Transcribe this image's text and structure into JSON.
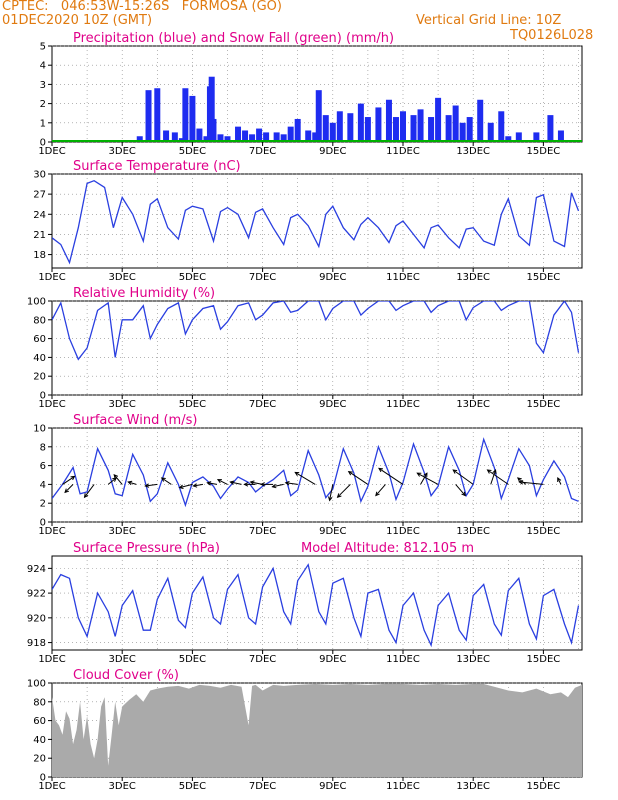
{
  "header": {
    "line1": "CPTEC:   046:53W-15:26S   FORMOSA (GO)",
    "line2": "01DEC2020 10Z (GMT)",
    "right1": "Vertical Grid Line: 10Z",
    "right2": "TQ0126L028"
  },
  "colors": {
    "header": "#e07a10",
    "title": "#e0008a",
    "precip": "#1e2cf0",
    "snow": "#00b000",
    "line": "#2a3fe0",
    "cloud": "#aaaaaa"
  },
  "x_axis": {
    "labels": [
      "1DEC",
      "3DEC",
      "5DEC",
      "7DEC",
      "9DEC",
      "11DEC",
      "13DEC",
      "15DEC"
    ],
    "label_days": [
      1,
      3,
      5,
      7,
      9,
      11,
      13,
      15
    ],
    "start_day": 1,
    "end_day": 16.1
  },
  "chart_data": [
    {
      "type": "bar",
      "title": "Precipitation (blue) and Snow Fall (green) (mm/h)",
      "ylim": [
        0,
        5
      ],
      "yticks": [
        0,
        1,
        2,
        3,
        4,
        5
      ],
      "series": [
        {
          "name": "Precipitation",
          "x": [
            3.5,
            3.75,
            4.0,
            4.25,
            4.5,
            4.7,
            4.8,
            5.0,
            5.2,
            5.4,
            5.5,
            5.55,
            5.6,
            5.8,
            6.0,
            6.3,
            6.5,
            6.7,
            6.9,
            7.1,
            7.4,
            7.6,
            7.8,
            8.0,
            8.3,
            8.5,
            8.6,
            8.8,
            9.0,
            9.2,
            9.5,
            9.8,
            10.0,
            10.3,
            10.6,
            10.8,
            11.0,
            11.3,
            11.5,
            11.8,
            12.0,
            12.3,
            12.5,
            12.7,
            12.9,
            13.2,
            13.5,
            13.8,
            14.0,
            14.3,
            14.8,
            15.2,
            15.5
          ],
          "values": [
            0.3,
            2.7,
            2.8,
            0.6,
            0.5,
            0.2,
            2.8,
            2.4,
            0.7,
            0.3,
            2.9,
            3.4,
            1.2,
            0.4,
            0.3,
            0.8,
            0.6,
            0.4,
            0.7,
            0.5,
            0.5,
            0.4,
            0.8,
            1.2,
            0.6,
            0.5,
            2.7,
            1.4,
            1.0,
            1.6,
            1.5,
            2.0,
            1.3,
            1.8,
            2.2,
            1.3,
            1.6,
            1.4,
            1.7,
            1.3,
            2.3,
            1.4,
            1.9,
            1.0,
            1.3,
            2.2,
            1.0,
            1.6,
            0.3,
            0.5,
            0.5,
            1.4,
            0.6
          ]
        },
        {
          "name": "Snow Fall",
          "x": [
            1,
            16
          ],
          "values": [
            0,
            0
          ]
        }
      ]
    },
    {
      "type": "line",
      "title": "Surface Temperature (nC)",
      "ylim": [
        16,
        30
      ],
      "yticks": [
        18,
        21,
        24,
        27,
        30
      ],
      "x": [
        1,
        1.25,
        1.5,
        1.75,
        2.0,
        2.2,
        2.5,
        2.75,
        3.0,
        3.3,
        3.6,
        3.8,
        4.0,
        4.3,
        4.6,
        4.8,
        5.0,
        5.3,
        5.6,
        5.8,
        6.0,
        6.3,
        6.6,
        6.8,
        7.0,
        7.3,
        7.6,
        7.8,
        8.0,
        8.3,
        8.6,
        8.8,
        9.0,
        9.3,
        9.6,
        9.8,
        10.0,
        10.3,
        10.6,
        10.8,
        11.0,
        11.3,
        11.6,
        11.8,
        12.0,
        12.3,
        12.6,
        12.8,
        13.0,
        13.3,
        13.6,
        13.8,
        14.0,
        14.3,
        14.6,
        14.8,
        15.0,
        15.3,
        15.6,
        15.8,
        16.0
      ],
      "values": [
        20.5,
        19.5,
        16.8,
        22.0,
        28.6,
        29.0,
        28.0,
        22.0,
        26.5,
        24.0,
        20.0,
        25.5,
        26.3,
        22.0,
        20.3,
        24.6,
        25.2,
        24.8,
        20.0,
        24.4,
        25.0,
        24.0,
        20.5,
        24.3,
        24.8,
        22.0,
        19.5,
        23.5,
        24.0,
        22.3,
        19.2,
        24.0,
        25.2,
        22.0,
        20.2,
        22.5,
        23.5,
        22.0,
        19.8,
        22.3,
        23.0,
        21.0,
        19.0,
        22.0,
        22.4,
        20.5,
        19.0,
        21.8,
        22.0,
        20.0,
        19.4,
        24.0,
        26.3,
        20.8,
        19.4,
        26.5,
        26.9,
        20.0,
        19.2,
        27.2,
        24.5
      ]
    },
    {
      "type": "line",
      "title": "Relative Humidity (%)",
      "ylim": [
        0,
        100
      ],
      "yticks": [
        0,
        20,
        40,
        60,
        80,
        100
      ],
      "x": [
        1,
        1.25,
        1.5,
        1.75,
        2.0,
        2.3,
        2.6,
        2.8,
        3.0,
        3.3,
        3.6,
        3.8,
        4.0,
        4.3,
        4.6,
        4.8,
        5.0,
        5.3,
        5.6,
        5.8,
        6.0,
        6.3,
        6.6,
        6.8,
        7.0,
        7.3,
        7.6,
        7.8,
        8.0,
        8.3,
        8.6,
        8.8,
        9.0,
        9.3,
        9.6,
        9.8,
        10.0,
        10.3,
        10.6,
        10.8,
        11.0,
        11.3,
        11.6,
        11.8,
        12.0,
        12.3,
        12.6,
        12.8,
        13.0,
        13.3,
        13.6,
        13.8,
        14.0,
        14.3,
        14.6,
        14.8,
        15.0,
        15.3,
        15.6,
        15.8,
        16.0
      ],
      "values": [
        80,
        98,
        60,
        38,
        50,
        90,
        98,
        40,
        80,
        80,
        95,
        60,
        75,
        92,
        98,
        65,
        80,
        92,
        95,
        70,
        78,
        95,
        98,
        80,
        85,
        98,
        100,
        88,
        90,
        100,
        100,
        80,
        92,
        100,
        100,
        85,
        92,
        100,
        100,
        90,
        95,
        100,
        100,
        88,
        95,
        100,
        100,
        80,
        93,
        100,
        100,
        90,
        95,
        100,
        100,
        55,
        45,
        85,
        100,
        88,
        45
      ]
    },
    {
      "type": "line",
      "title": "Surface Wind (m/s)",
      "ylim": [
        0,
        10
      ],
      "yticks": [
        0,
        2,
        4,
        6,
        8,
        10
      ],
      "x": [
        1,
        1.3,
        1.6,
        1.8,
        2.0,
        2.3,
        2.6,
        2.8,
        3.0,
        3.3,
        3.6,
        3.8,
        4.0,
        4.3,
        4.6,
        4.8,
        5.0,
        5.3,
        5.6,
        5.8,
        6.0,
        6.3,
        6.6,
        6.8,
        7.0,
        7.3,
        7.6,
        7.8,
        8.0,
        8.3,
        8.6,
        8.8,
        9.0,
        9.3,
        9.6,
        9.8,
        10.0,
        10.3,
        10.6,
        10.8,
        11.0,
        11.3,
        11.6,
        11.8,
        12.0,
        12.3,
        12.6,
        12.8,
        13.0,
        13.3,
        13.6,
        13.8,
        14.0,
        14.3,
        14.6,
        14.8,
        15.0,
        15.3,
        15.6,
        15.8,
        16.0
      ],
      "values": [
        2.5,
        4.0,
        5.8,
        3.0,
        3.2,
        7.8,
        5.5,
        3.0,
        2.8,
        7.2,
        5.0,
        2.2,
        3.0,
        6.3,
        4.0,
        1.8,
        4.2,
        4.8,
        3.8,
        2.5,
        3.5,
        4.8,
        4.2,
        3.2,
        3.8,
        4.5,
        5.5,
        2.8,
        3.4,
        7.6,
        5.0,
        2.6,
        3.5,
        7.8,
        5.2,
        2.2,
        3.8,
        8.0,
        5.2,
        2.4,
        4.2,
        8.3,
        5.3,
        2.8,
        3.8,
        8.0,
        5.5,
        2.8,
        4.0,
        8.8,
        5.8,
        2.5,
        4.5,
        7.8,
        6.0,
        2.8,
        4.5,
        6.5,
        4.8,
        2.5,
        2.2
      ],
      "vectors": {
        "x": [
          1.3,
          1.6,
          2.2,
          2.6,
          3.0,
          3.4,
          4.0,
          4.4,
          5.0,
          5.3,
          5.7,
          6.0,
          6.4,
          6.8,
          7.0,
          7.3,
          7.6,
          8.0,
          8.5,
          9.0,
          9.5,
          10.0,
          10.5,
          11.0,
          11.5,
          12.0,
          12.5,
          13.0,
          13.5,
          14.0,
          14.5,
          15.0,
          15.5
        ],
        "u": [
          1.5,
          -1.0,
          -1.2,
          1.0,
          -1.0,
          -1.0,
          -1.5,
          -1.2,
          -1.6,
          -1.2,
          -1.2,
          -1.2,
          -1.4,
          -1.4,
          -1.5,
          -1.5,
          -1.4,
          -1.5,
          -2.5,
          -0.4,
          -1.6,
          -2.4,
          -1.2,
          -3.0,
          0.8,
          -2.6,
          1.2,
          -2.5,
          0.6,
          -2.6,
          -1.0,
          -3.0,
          -0.4
        ],
        "v": [
          1.0,
          -1.0,
          -1.6,
          0.8,
          1.2,
          0.3,
          -0.2,
          0.8,
          -0.4,
          -0.2,
          0.2,
          0.6,
          0.3,
          0.0,
          0.3,
          0.0,
          -0.3,
          0.2,
          1.5,
          -2.0,
          -1.6,
          1.6,
          -1.4,
          2.0,
          1.4,
          1.4,
          -1.4,
          1.8,
          1.8,
          1.8,
          0.8,
          0.3,
          0.8
        ]
      }
    },
    {
      "type": "line",
      "title": "Surface Pressure (hPa)",
      "annotation": "Model Altitude: 812.105 m",
      "ylim": [
        917.4,
        925
      ],
      "yticks": [
        918,
        920,
        922,
        924
      ],
      "x": [
        1,
        1.25,
        1.5,
        1.75,
        2.0,
        2.3,
        2.6,
        2.8,
        3.0,
        3.3,
        3.6,
        3.8,
        4.0,
        4.3,
        4.6,
        4.8,
        5.0,
        5.3,
        5.6,
        5.8,
        6.0,
        6.3,
        6.6,
        6.8,
        7.0,
        7.3,
        7.6,
        7.8,
        8.0,
        8.3,
        8.6,
        8.8,
        9.0,
        9.3,
        9.6,
        9.8,
        10.0,
        10.3,
        10.6,
        10.8,
        11.0,
        11.3,
        11.6,
        11.8,
        12.0,
        12.3,
        12.6,
        12.8,
        13.0,
        13.3,
        13.6,
        13.8,
        14.0,
        14.3,
        14.6,
        14.8,
        15.0,
        15.3,
        15.6,
        15.8,
        16.0
      ],
      "values": [
        922.3,
        923.5,
        923.2,
        920.0,
        918.5,
        922.0,
        920.5,
        918.5,
        921.0,
        922.2,
        919.0,
        919.0,
        921.5,
        923.2,
        919.8,
        919.2,
        922.0,
        923.3,
        920.0,
        919.5,
        922.3,
        923.5,
        920.0,
        919.5,
        922.5,
        924.0,
        920.5,
        919.5,
        923.0,
        924.3,
        920.5,
        919.5,
        922.8,
        923.2,
        920.0,
        918.5,
        922.0,
        922.3,
        919.0,
        918.0,
        921.0,
        922.0,
        919.0,
        917.8,
        921.0,
        922.0,
        919.0,
        918.2,
        921.8,
        922.7,
        919.5,
        918.6,
        922.2,
        923.2,
        919.5,
        918.3,
        921.8,
        922.3,
        919.5,
        918.0,
        921.0
      ]
    },
    {
      "type": "area",
      "title": "Cloud Cover (%)",
      "ylim": [
        0,
        100
      ],
      "yticks": [
        0,
        20,
        40,
        60,
        80,
        100
      ],
      "x": [
        1,
        1.1,
        1.2,
        1.3,
        1.4,
        1.5,
        1.6,
        1.7,
        1.8,
        1.9,
        2.0,
        2.1,
        2.2,
        2.3,
        2.4,
        2.5,
        2.6,
        2.7,
        2.8,
        2.9,
        3.0,
        3.2,
        3.4,
        3.6,
        3.8,
        4.0,
        4.3,
        4.6,
        4.9,
        5.2,
        5.5,
        5.8,
        6.1,
        6.4,
        6.6,
        6.7,
        6.8,
        7.0,
        7.3,
        7.6,
        8.0,
        8.5,
        9.0,
        9.5,
        10.0,
        10.5,
        11.0,
        11.5,
        12.0,
        12.5,
        13.0,
        13.3,
        13.6,
        14.0,
        14.4,
        14.8,
        15.2,
        15.5,
        15.7,
        15.9,
        16.1
      ],
      "values": [
        85,
        60,
        55,
        45,
        70,
        62,
        35,
        50,
        80,
        40,
        65,
        35,
        20,
        40,
        75,
        85,
        12,
        45,
        80,
        55,
        75,
        82,
        88,
        80,
        92,
        94,
        96,
        97,
        94,
        98,
        97,
        95,
        98,
        96,
        55,
        97,
        98,
        92,
        98,
        97,
        98,
        99,
        98,
        99,
        98,
        99,
        99,
        98,
        99,
        98,
        99,
        99,
        96,
        92,
        90,
        94,
        88,
        90,
        85,
        95,
        98
      ]
    }
  ]
}
